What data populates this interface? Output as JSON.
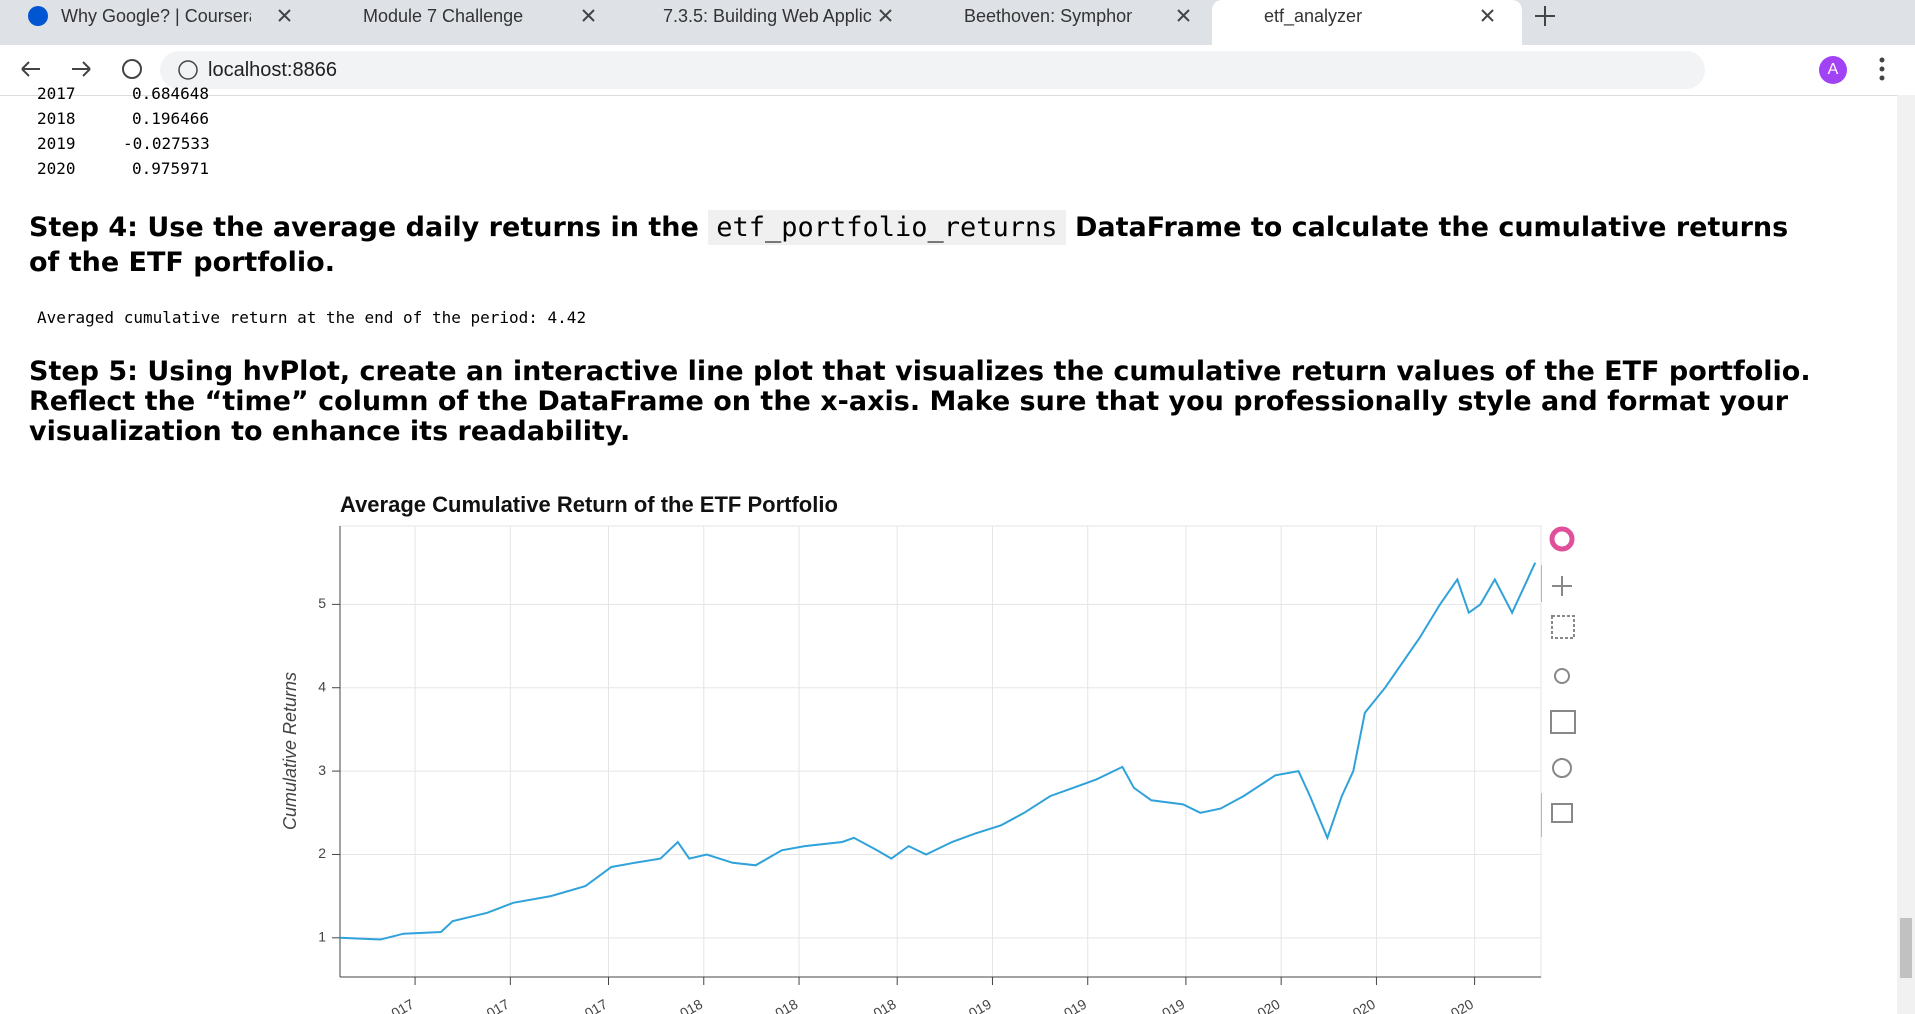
{
  "browser": {
    "tabs": [
      "Why Google? | Coursera",
      "Module 7 Challenge",
      "7.3.5: Building Web Applic",
      "Beethoven: Symphon",
      "etf_analyzer"
    ],
    "url": "localhost:8866",
    "profile": "A"
  },
  "output_table": {
    "rows": [
      [
        "2017",
        "0.684648"
      ],
      [
        "2018",
        "0.196466"
      ],
      [
        "2019",
        "-0.027533"
      ],
      [
        "2020",
        "0.975971"
      ]
    ]
  },
  "step4": {
    "heading_start": "Step 4: Use the average daily returns in the",
    "code": "etf_portfolio_returns",
    "heading_end": "DataFrame to calculate the cumulative returns of the ETF portfolio."
  },
  "cumulative_output": "Averaged cumulative return at the end of the period: 4.42",
  "step5": "Step 5: Using hvPlot, create an interactive line plot that visualizes the cumulative return values of the ETF portfolio. Reflect the “time” column of the DataFrame on the x-axis. Make sure that you professionally style and format your visualization to enhance its readability.",
  "chart_data": {
    "type": "line",
    "title": "Average Cumulative Return of the ETF Portfolio",
    "y_label": "Cumulative Returns",
    "color": "#30a2da",
    "grid": true,
    "x": [
      2016.74,
      2016.88,
      2016.96,
      2017.09,
      2017.13,
      2017.25,
      2017.34,
      2017.47,
      2017.59,
      2017.68,
      2017.76,
      2017.85,
      2017.91,
      2017.95,
      2018.01,
      2018.1,
      2018.18,
      2018.27,
      2018.35,
      2018.48,
      2018.52,
      2018.6,
      2018.65,
      2018.71,
      2018.77,
      2018.86,
      2018.94,
      2019.03,
      2019.11,
      2019.2,
      2019.28,
      2019.36,
      2019.45,
      2019.49,
      2019.55,
      2019.66,
      2019.72,
      2019.79,
      2019.87,
      2019.98,
      2020.06,
      2020.1,
      2020.16,
      2020.21,
      2020.25,
      2020.29,
      2020.36,
      2020.42,
      2020.48,
      2020.55,
      2020.61,
      2020.65,
      2020.69,
      2020.74,
      2020.8,
      2020.84,
      2020.88
    ],
    "values": [
      1.0,
      0.98,
      1.05,
      1.07,
      1.2,
      1.3,
      1.42,
      1.5,
      1.62,
      1.85,
      1.9,
      1.95,
      2.15,
      1.95,
      2.0,
      1.9,
      1.87,
      2.05,
      2.1,
      2.15,
      2.2,
      2.05,
      1.95,
      2.1,
      2.0,
      2.15,
      2.25,
      2.35,
      2.5,
      2.7,
      2.8,
      2.9,
      3.05,
      2.8,
      2.65,
      2.6,
      2.5,
      2.55,
      2.7,
      2.95,
      3.0,
      2.7,
      2.2,
      2.7,
      3.0,
      3.7,
      4.0,
      4.3,
      4.6,
      5.0,
      5.3,
      4.9,
      5.0,
      5.3,
      4.9,
      5.2,
      5.5
    ],
    "xlim": [
      2016.74,
      2020.9
    ],
    "ylim": [
      0.53,
      5.94
    ],
    "xticks": [
      {
        "value": 2017.0,
        "label": "017"
      },
      {
        "value": 2017.33,
        "label": "017"
      },
      {
        "value": 2017.67,
        "label": "017"
      },
      {
        "value": 2018.0,
        "label": "018"
      },
      {
        "value": 2018.33,
        "label": "018"
      },
      {
        "value": 2018.67,
        "label": "018"
      },
      {
        "value": 2019.0,
        "label": "019"
      },
      {
        "value": 2019.33,
        "label": "019"
      },
      {
        "value": 2019.67,
        "label": "019"
      },
      {
        "value": 2020.0,
        "label": "020"
      },
      {
        "value": 2020.33,
        "label": "020"
      },
      {
        "value": 2020.67,
        "label": "020"
      }
    ],
    "yticks": [
      1,
      2,
      3,
      4,
      5
    ]
  }
}
